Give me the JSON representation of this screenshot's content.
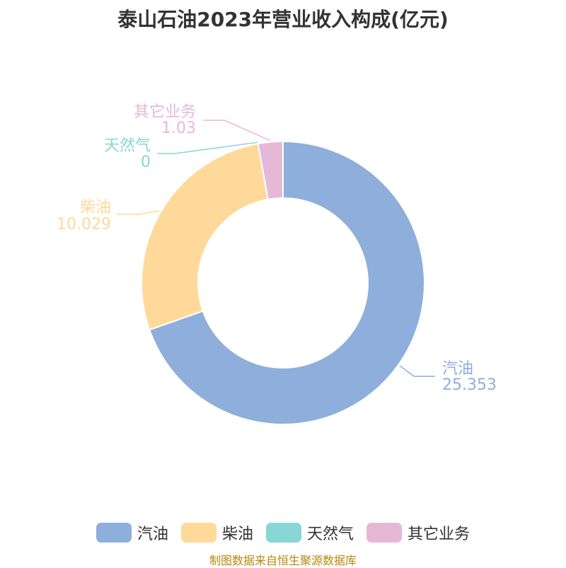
{
  "title": "泰山石油2023年营业收入构成(亿元)",
  "source": "制图数据来自恒生聚源数据库",
  "chart_data": {
    "type": "pie",
    "donut": true,
    "title": "泰山石油2023年营业收入构成(亿元)",
    "legend_position": "bottom",
    "series": [
      {
        "name": "汽油",
        "value": 25.353,
        "label": "25.353",
        "color": "#8eaedb"
      },
      {
        "name": "柴油",
        "value": 10.029,
        "label": "10.029",
        "color": "#ffd99a"
      },
      {
        "name": "天然气",
        "value": 0,
        "label": "0",
        "color": "#88d6d6"
      },
      {
        "name": "其它业务",
        "value": 1.03,
        "label": "1.03",
        "color": "#e6b8d8"
      }
    ]
  }
}
